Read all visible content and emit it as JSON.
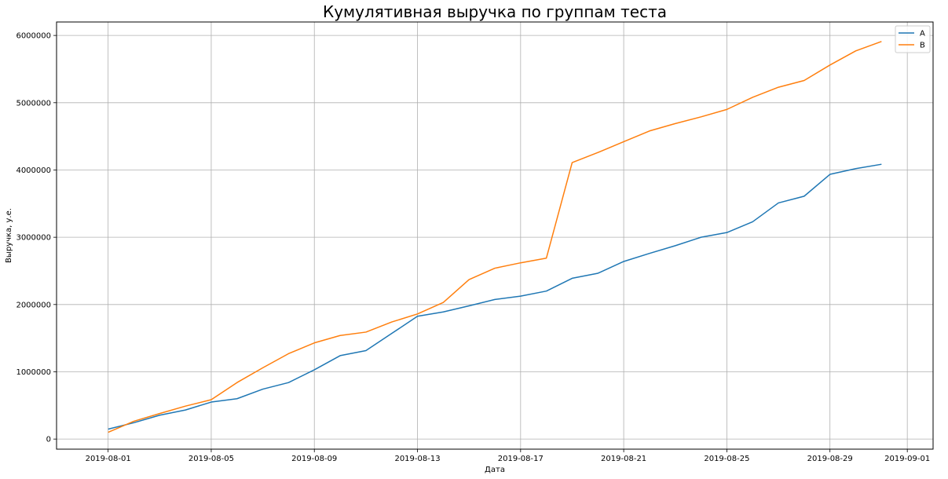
{
  "chart_data": {
    "type": "line",
    "title": "Кумулятивная выручка по группам теста",
    "xlabel": "Дата",
    "ylabel": "Выручка, у.е.",
    "ylim": [
      -150000,
      6200000
    ],
    "xlim": [
      "2019-07-30",
      "2019-09-02"
    ],
    "grid": true,
    "legend_position": "top-right",
    "x_ticks": [
      "2019-08-01",
      "2019-08-05",
      "2019-08-09",
      "2019-08-13",
      "2019-08-17",
      "2019-08-21",
      "2019-08-25",
      "2019-08-29",
      "2019-09-01"
    ],
    "y_ticks": [
      "0",
      "1000000",
      "2000000",
      "3000000",
      "4000000",
      "5000000",
      "6000000"
    ],
    "x": [
      "2019-08-01",
      "2019-08-02",
      "2019-08-03",
      "2019-08-04",
      "2019-08-05",
      "2019-08-06",
      "2019-08-07",
      "2019-08-08",
      "2019-08-09",
      "2019-08-10",
      "2019-08-11",
      "2019-08-12",
      "2019-08-13",
      "2019-08-14",
      "2019-08-15",
      "2019-08-16",
      "2019-08-17",
      "2019-08-18",
      "2019-08-19",
      "2019-08-20",
      "2019-08-21",
      "2019-08-22",
      "2019-08-23",
      "2019-08-24",
      "2019-08-25",
      "2019-08-26",
      "2019-08-27",
      "2019-08-28",
      "2019-08-29",
      "2019-08-30",
      "2019-08-31"
    ],
    "series": [
      {
        "name": "A",
        "color": "#1f77b4",
        "values": [
          148000,
          243000,
          355000,
          432000,
          550000,
          600000,
          742000,
          840000,
          1030000,
          1240000,
          1315000,
          1570000,
          1825000,
          1890000,
          1980000,
          2075000,
          2125000,
          2200000,
          2390000,
          2465000,
          2640000,
          2760000,
          2875000,
          3000000,
          3070000,
          3230000,
          3510000,
          3610000,
          3935000,
          4020000,
          4085000
        ]
      },
      {
        "name": "B",
        "color": "#ff7f0e",
        "values": [
          100000,
          265000,
          380000,
          490000,
          585000,
          840000,
          1060000,
          1270000,
          1430000,
          1540000,
          1590000,
          1740000,
          1860000,
          2030000,
          2370000,
          2540000,
          2620000,
          2690000,
          4110000,
          4260000,
          4420000,
          4580000,
          4690000,
          4790000,
          4900000,
          5080000,
          5230000,
          5330000,
          5560000,
          5770000,
          5910000
        ]
      }
    ]
  }
}
